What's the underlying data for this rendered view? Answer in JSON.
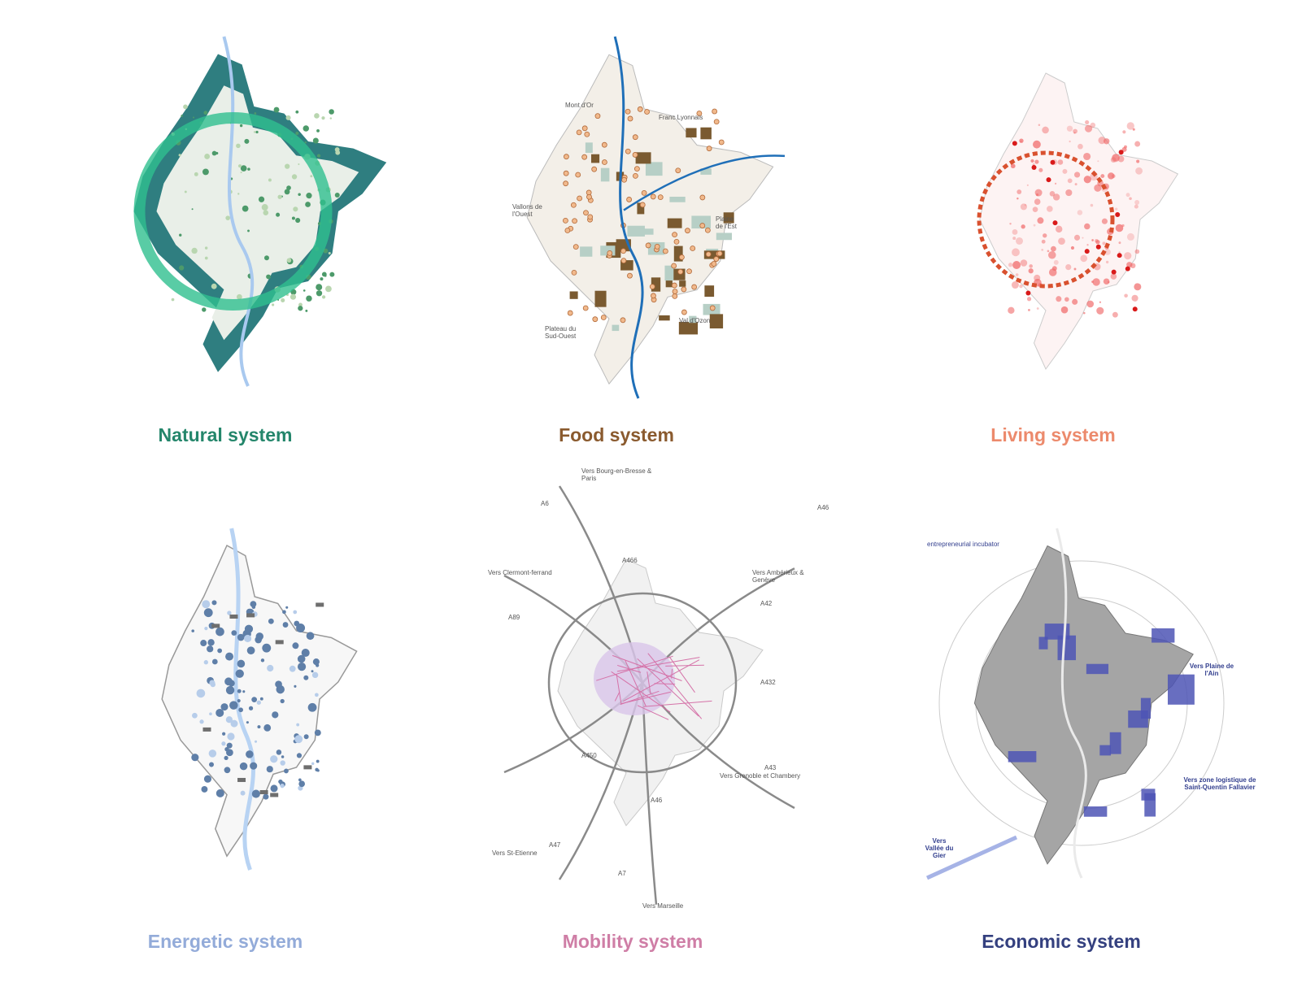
{
  "panels": [
    {
      "title": "Natural system",
      "labels": []
    },
    {
      "title": "Food system",
      "labels": [
        "Mont d'Or",
        "Franc Lyonnais",
        "Vallons de l'Ouest",
        "Plaine de l'Est",
        "Plateau du Sud-Ouest",
        "Val d'Ozon"
      ]
    },
    {
      "title": "Living system",
      "labels": []
    },
    {
      "title": "Energetic system",
      "labels": []
    },
    {
      "title": "Mobility system",
      "labels": [
        "Vers Bourg-en-Bresse & Paris",
        "A6",
        "A466",
        "A46",
        "Vers Clermont-ferrand",
        "A89",
        "Vers Ambérieux & Genève",
        "A42",
        "A432",
        "A43",
        "Vers Grenoble et Chambery",
        "A450",
        "A46",
        "A47",
        "Vers St-Etienne",
        "A7",
        "Vers Marseille"
      ]
    },
    {
      "title": "Economic system",
      "labels": [
        "entrepreneurial incubator",
        "Vers Plaine de l'Ain",
        "Vers zone logistique de Saint-Quentin Fallavier",
        "Vers Vallée du Gier"
      ]
    }
  ]
}
